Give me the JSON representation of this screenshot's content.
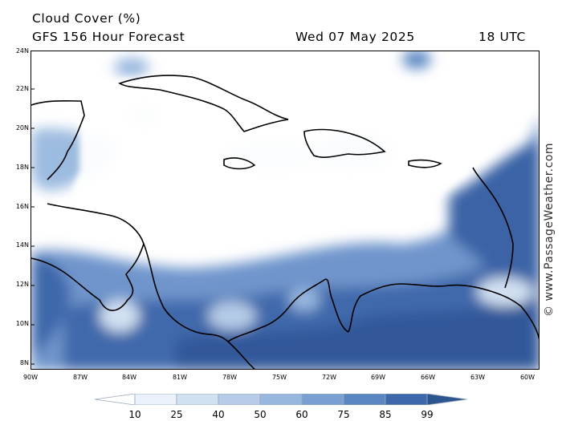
{
  "header": {
    "title": "Cloud Cover (%)",
    "subtitle": "GFS 156 Hour Forecast",
    "date": "Wed 07 May 2025",
    "time": "18 UTC"
  },
  "map": {
    "region": "Caribbean Sea and Central America",
    "lat_labels": [
      "24N",
      "22N",
      "20N",
      "18N",
      "16N",
      "14N",
      "12N",
      "10N",
      "8N"
    ],
    "lon_labels": [
      "90W",
      "87W",
      "84W",
      "81W",
      "78W",
      "75W",
      "72W",
      "69W",
      "66W",
      "63W",
      "60W"
    ]
  },
  "legend": {
    "labels": [
      "10",
      "25",
      "40",
      "50",
      "60",
      "75",
      "85",
      "99"
    ],
    "colors": [
      "#ffffff",
      "#eaf1fa",
      "#d2e1f2",
      "#b6cce8",
      "#98b7df",
      "#7aa0d2",
      "#5a86c2",
      "#3d68ab",
      "#2c568f"
    ]
  },
  "credit": "© www.PassageWeather.com"
}
